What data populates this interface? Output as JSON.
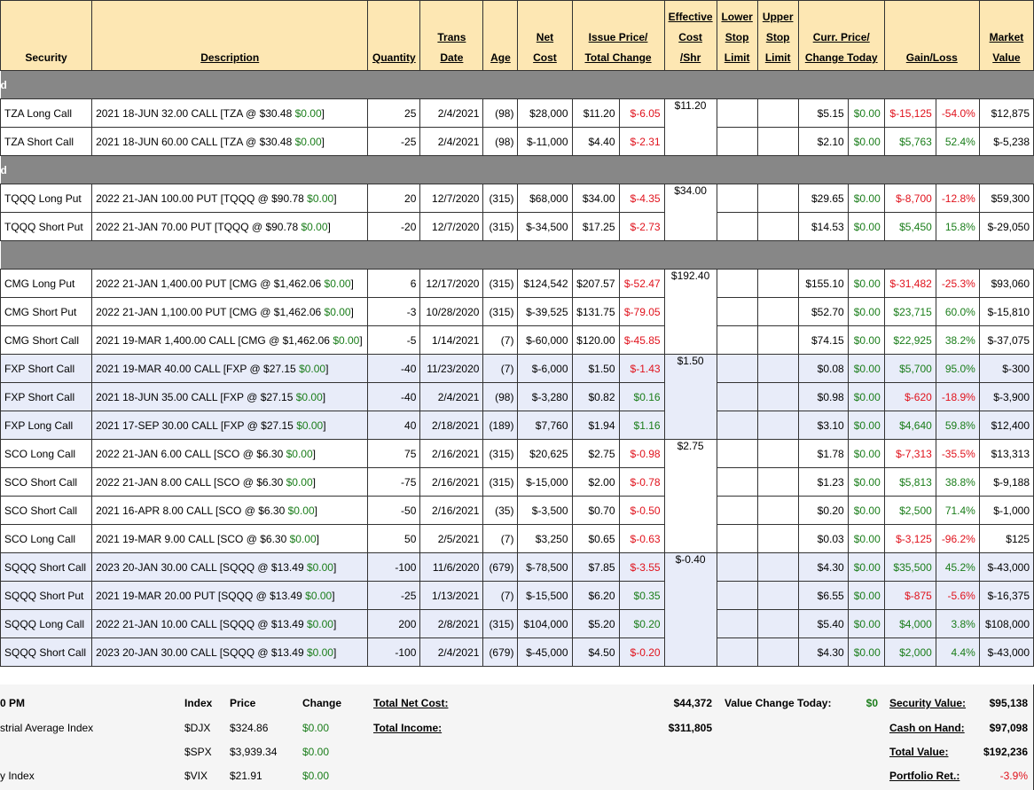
{
  "headers": {
    "security": "Security",
    "description": "Description",
    "quantity": "Quantity",
    "trans_date": [
      "Trans",
      "Date"
    ],
    "age": "Age",
    "net_cost": [
      "Net",
      "Cost"
    ],
    "issue_price": [
      "Issue Price/",
      "Total Change"
    ],
    "effective_cost": [
      "Effective",
      "Cost",
      "/Shr"
    ],
    "lower_stop": [
      "Lower",
      "Stop",
      "Limit"
    ],
    "upper_stop": [
      "Upper",
      "Stop",
      "Limit"
    ],
    "curr_price": [
      "Curr. Price/",
      "Change Today"
    ],
    "gain_loss": "Gain/Loss",
    "market_value": [
      "Market",
      "Value"
    ]
  },
  "groups": [
    {
      "label": "d",
      "effective": "$11.20",
      "rows": [
        {
          "security": "TZA Long Call",
          "desc": "2021 18-JUN 32.00 CALL [TZA @ $30.48 ",
          "desc_chg": "$0.00",
          "desc_end": "]",
          "qty": "25",
          "date": "2/4/2021",
          "age": "(98)",
          "net": "$28,000",
          "issue": "$11.20",
          "total_chg": "$-6.05",
          "curr": "$5.15",
          "today": "$0.00",
          "gain": "$-15,125",
          "pct": "-54.0%",
          "value": "$12,875",
          "blue": false
        },
        {
          "security": "TZA Short Call",
          "desc": "2021 18-JUN 60.00 CALL [TZA @ $30.48 ",
          "desc_chg": "$0.00",
          "desc_end": "]",
          "qty": "-25",
          "date": "2/4/2021",
          "age": "(98)",
          "net": "$-11,000",
          "issue": "$4.40",
          "total_chg": "$-2.31",
          "curr": "$2.10",
          "today": "$0.00",
          "gain": "$5,763",
          "pct": "52.4%",
          "value": "$-5,238",
          "blue": false
        }
      ]
    },
    {
      "label": "d",
      "effective": "$34.00",
      "rows": [
        {
          "security": "TQQQ Long Put",
          "desc": "2022 21-JAN 100.00 PUT [TQQQ @ $90.78 ",
          "desc_chg": "$0.00",
          "desc_end": "]",
          "qty": "20",
          "date": "12/7/2020",
          "age": "(315)",
          "net": "$68,000",
          "issue": "$34.00",
          "total_chg": "$-4.35",
          "curr": "$29.65",
          "today": "$0.00",
          "gain": "$-8,700",
          "pct": "-12.8%",
          "value": "$59,300",
          "blue": false
        },
        {
          "security": "TQQQ Short Put",
          "desc": "2022 21-JAN 70.00 PUT [TQQQ @ $90.78 ",
          "desc_chg": "$0.00",
          "desc_end": "]",
          "qty": "-20",
          "date": "12/7/2020",
          "age": "(315)",
          "net": "$-34,500",
          "issue": "$17.25",
          "total_chg": "$-2.73",
          "curr": "$14.53",
          "today": "$0.00",
          "gain": "$5,450",
          "pct": "15.8%",
          "value": "$-29,050",
          "blue": false
        }
      ]
    },
    {
      "label": "",
      "effective": "$192.40",
      "rows": [
        {
          "security": "CMG Long Put",
          "desc": "2022 21-JAN 1,400.00 PUT [CMG @ $1,462.06 ",
          "desc_chg": "$0.00",
          "desc_end": "]",
          "qty": "6",
          "date": "12/17/2020",
          "age": "(315)",
          "net": "$124,542",
          "issue": "$207.57",
          "total_chg": "$-52.47",
          "curr": "$155.10",
          "today": "$0.00",
          "gain": "$-31,482",
          "pct": "-25.3%",
          "value": "$93,060",
          "blue": false
        },
        {
          "security": "CMG Short Put",
          "desc": "2022 21-JAN 1,100.00 PUT [CMG @ $1,462.06 ",
          "desc_chg": "$0.00",
          "desc_end": "]",
          "qty": "-3",
          "date": "10/28/2020",
          "age": "(315)",
          "net": "$-39,525",
          "issue": "$131.75",
          "total_chg": "$-79.05",
          "curr": "$52.70",
          "today": "$0.00",
          "gain": "$23,715",
          "pct": "60.0%",
          "value": "$-15,810",
          "blue": false
        },
        {
          "security": "CMG Short Call",
          "desc": "2021 19-MAR 1,400.00 CALL [CMG @ $1,462.06 ",
          "desc_chg": "$0.00",
          "desc_end": "]",
          "qty": "-5",
          "date": "1/14/2021",
          "age": "(7)",
          "net": "$-60,000",
          "issue": "$120.00",
          "total_chg": "$-45.85",
          "curr": "$74.15",
          "today": "$0.00",
          "gain": "$22,925",
          "pct": "38.2%",
          "value": "$-37,075",
          "blue": false
        }
      ]
    }
  ],
  "rows2": [
    {
      "security": "FXP Short Call",
      "desc": "2021 19-MAR 40.00 CALL [FXP @ $27.15 ",
      "desc_chg": "$0.00",
      "desc_end": "]",
      "qty": "-40",
      "date": "11/23/2020",
      "age": "(7)",
      "net": "$-6,000",
      "issue": "$1.50",
      "total_chg": "$-1.43",
      "curr": "$0.08",
      "today": "$0.00",
      "gain": "$5,700",
      "pct": "95.0%",
      "value": "$-300",
      "blue": true,
      "eff": "$1.50",
      "span": 3
    },
    {
      "security": "FXP Short Call",
      "desc": "2021 18-JUN 35.00 CALL [FXP @ $27.15 ",
      "desc_chg": "$0.00",
      "desc_end": "]",
      "qty": "-40",
      "date": "2/4/2021",
      "age": "(98)",
      "net": "$-3,280",
      "issue": "$0.82",
      "total_chg": "$0.16",
      "curr": "$0.98",
      "today": "$0.00",
      "gain": "$-620",
      "pct": "-18.9%",
      "value": "$-3,900",
      "blue": true
    },
    {
      "security": "FXP Long Call",
      "desc": "2021 17-SEP 30.00 CALL [FXP @ $27.15 ",
      "desc_chg": "$0.00",
      "desc_end": "]",
      "qty": "40",
      "date": "2/18/2021",
      "age": "(189)",
      "net": "$7,760",
      "issue": "$1.94",
      "total_chg": "$1.16",
      "curr": "$3.10",
      "today": "$0.00",
      "gain": "$4,640",
      "pct": "59.8%",
      "value": "$12,400",
      "blue": true
    },
    {
      "security": "SCO Long Call",
      "desc": "2022 21-JAN 6.00 CALL [SCO @ $6.30 ",
      "desc_chg": "$0.00",
      "desc_end": "]",
      "qty": "75",
      "date": "2/16/2021",
      "age": "(315)",
      "net": "$20,625",
      "issue": "$2.75",
      "total_chg": "$-0.98",
      "curr": "$1.78",
      "today": "$0.00",
      "gain": "$-7,313",
      "pct": "-35.5%",
      "value": "$13,313",
      "blue": false,
      "eff": "$2.75",
      "span": 4
    },
    {
      "security": "SCO Short Call",
      "desc": "2022 21-JAN 8.00 CALL [SCO @ $6.30 ",
      "desc_chg": "$0.00",
      "desc_end": "]",
      "qty": "-75",
      "date": "2/16/2021",
      "age": "(315)",
      "net": "$-15,000",
      "issue": "$2.00",
      "total_chg": "$-0.78",
      "curr": "$1.23",
      "today": "$0.00",
      "gain": "$5,813",
      "pct": "38.8%",
      "value": "$-9,188",
      "blue": false
    },
    {
      "security": "SCO Short Call",
      "desc": "2021 16-APR 8.00 CALL [SCO @ $6.30 ",
      "desc_chg": "$0.00",
      "desc_end": "]",
      "qty": "-50",
      "date": "2/16/2021",
      "age": "(35)",
      "net": "$-3,500",
      "issue": "$0.70",
      "total_chg": "$-0.50",
      "curr": "$0.20",
      "today": "$0.00",
      "gain": "$2,500",
      "pct": "71.4%",
      "value": "$-1,000",
      "blue": false
    },
    {
      "security": "SCO Long Call",
      "desc": "2021 19-MAR 9.00 CALL [SCO @ $6.30 ",
      "desc_chg": "$0.00",
      "desc_end": "]",
      "qty": "50",
      "date": "2/5/2021",
      "age": "(7)",
      "net": "$3,250",
      "issue": "$0.65",
      "total_chg": "$-0.63",
      "curr": "$0.03",
      "today": "$0.00",
      "gain": "$-3,125",
      "pct": "-96.2%",
      "value": "$125",
      "blue": false
    },
    {
      "security": "SQQQ Short Call",
      "desc": "2023 20-JAN 30.00 CALL [SQQQ @ $13.49 ",
      "desc_chg": "$0.00",
      "desc_end": "]",
      "qty": "-100",
      "date": "11/6/2020",
      "age": "(679)",
      "net": "$-78,500",
      "issue": "$7.85",
      "total_chg": "$-3.55",
      "curr": "$4.30",
      "today": "$0.00",
      "gain": "$35,500",
      "pct": "45.2%",
      "value": "$-43,000",
      "blue": true,
      "eff": "$-0.40",
      "span": 4
    },
    {
      "security": "SQQQ Short Put",
      "desc": "2021 19-MAR 20.00 PUT [SQQQ @ $13.49 ",
      "desc_chg": "$0.00",
      "desc_end": "]",
      "qty": "-25",
      "date": "1/13/2021",
      "age": "(7)",
      "net": "$-15,500",
      "issue": "$6.20",
      "total_chg": "$0.35",
      "curr": "$6.55",
      "today": "$0.00",
      "gain": "$-875",
      "pct": "-5.6%",
      "value": "$-16,375",
      "blue": true
    },
    {
      "security": "SQQQ Long Call",
      "desc": "2022 21-JAN 10.00 CALL [SQQQ @ $13.49 ",
      "desc_chg": "$0.00",
      "desc_end": "]",
      "qty": "200",
      "date": "2/8/2021",
      "age": "(315)",
      "net": "$104,000",
      "issue": "$5.20",
      "total_chg": "$0.20",
      "curr": "$5.40",
      "today": "$0.00",
      "gain": "$4,000",
      "pct": "3.8%",
      "value": "$108,000",
      "blue": true
    },
    {
      "security": "SQQQ Short Call",
      "desc": "2023 20-JAN 30.00 CALL [SQQQ @ $13.49 ",
      "desc_chg": "$0.00",
      "desc_end": "]",
      "qty": "-100",
      "date": "2/4/2021",
      "age": "(679)",
      "net": "$-45,000",
      "issue": "$4.50",
      "total_chg": "$-0.20",
      "curr": "$4.30",
      "today": "$0.00",
      "gain": "$2,000",
      "pct": "4.4%",
      "value": "$-43,000",
      "blue": true
    }
  ],
  "footer": {
    "time_label": "0 PM",
    "col_index": "Index",
    "col_price": "Price",
    "col_change": "Change",
    "indices": [
      {
        "name": "strial Average Index",
        "symbol": "$DJX",
        "price": "$324.86",
        "change": "$0.00"
      },
      {
        "name": "",
        "symbol": "$SPX",
        "price": "$3,939.34",
        "change": "$0.00"
      },
      {
        "name": "y Index",
        "symbol": "$VIX",
        "price": "$21.91",
        "change": "$0.00"
      }
    ],
    "total_net_cost_label": "Total Net Cost:",
    "total_net_cost": "$44,372",
    "total_income_label": "Total Income:",
    "total_income": "$311,805",
    "value_change_label": "Value Change Today:",
    "value_change": "$0",
    "security_value_label": "Security Value:",
    "security_value": "$95,138",
    "cash_label": "Cash on Hand:",
    "cash": "$97,098",
    "total_value_label": "Total Value:",
    "total_value": "$192,236",
    "portfolio_ret_label": "Portfolio Ret.:",
    "portfolio_ret": "-3.9%"
  },
  "colors": {
    "negative": "#e0121c",
    "positive": "#1a7d1a",
    "header_bg": "#fde7b3",
    "group_bg": "#878787",
    "blue_row": "#e8ecf9"
  }
}
